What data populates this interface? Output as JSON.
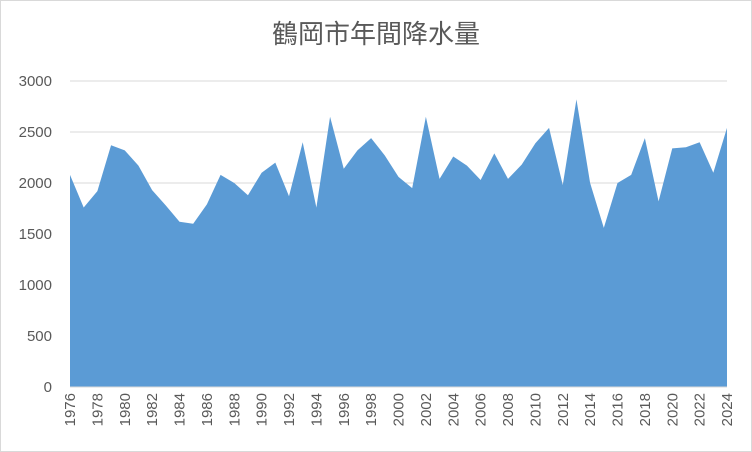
{
  "chart_data": {
    "type": "area",
    "title": "鶴岡市年間降水量",
    "xlabel": "",
    "ylabel": "",
    "ylim": [
      0,
      3000
    ],
    "yticks": [
      0,
      500,
      1000,
      1500,
      2000,
      2500,
      3000
    ],
    "x": [
      1976,
      1977,
      1978,
      1979,
      1980,
      1981,
      1982,
      1983,
      1984,
      1985,
      1986,
      1987,
      1988,
      1989,
      1990,
      1991,
      1992,
      1993,
      1994,
      1995,
      1996,
      1997,
      1998,
      1999,
      2000,
      2001,
      2002,
      2003,
      2004,
      2005,
      2006,
      2007,
      2008,
      2009,
      2010,
      2011,
      2012,
      2013,
      2014,
      2015,
      2016,
      2017,
      2018,
      2019,
      2020,
      2021,
      2022,
      2023,
      2024
    ],
    "xtick_labels": [
      "1976",
      "1978",
      "1980",
      "1982",
      "1984",
      "1986",
      "1988",
      "1990",
      "1992",
      "1994",
      "1996",
      "1998",
      "2000",
      "2002",
      "2004",
      "2006",
      "2008",
      "2010",
      "2012",
      "2014",
      "2016",
      "2018",
      "2020",
      "2022",
      "2024"
    ],
    "series": [
      {
        "color": "#5b9bd5",
        "values": [
          2080,
          1760,
          1920,
          2370,
          2320,
          2170,
          1930,
          1780,
          1620,
          1600,
          1790,
          2080,
          2000,
          1880,
          2100,
          2200,
          1870,
          2400,
          1760,
          2650,
          2140,
          2320,
          2440,
          2270,
          2060,
          1950,
          2650,
          2040,
          2260,
          2170,
          2030,
          2290,
          2040,
          2180,
          2390,
          2540,
          1980,
          2820,
          2000,
          1560,
          2000,
          2080,
          2440,
          1820,
          2340,
          2350,
          2400,
          2100,
          2540
        ]
      }
    ],
    "grid": true,
    "legend": "none"
  }
}
